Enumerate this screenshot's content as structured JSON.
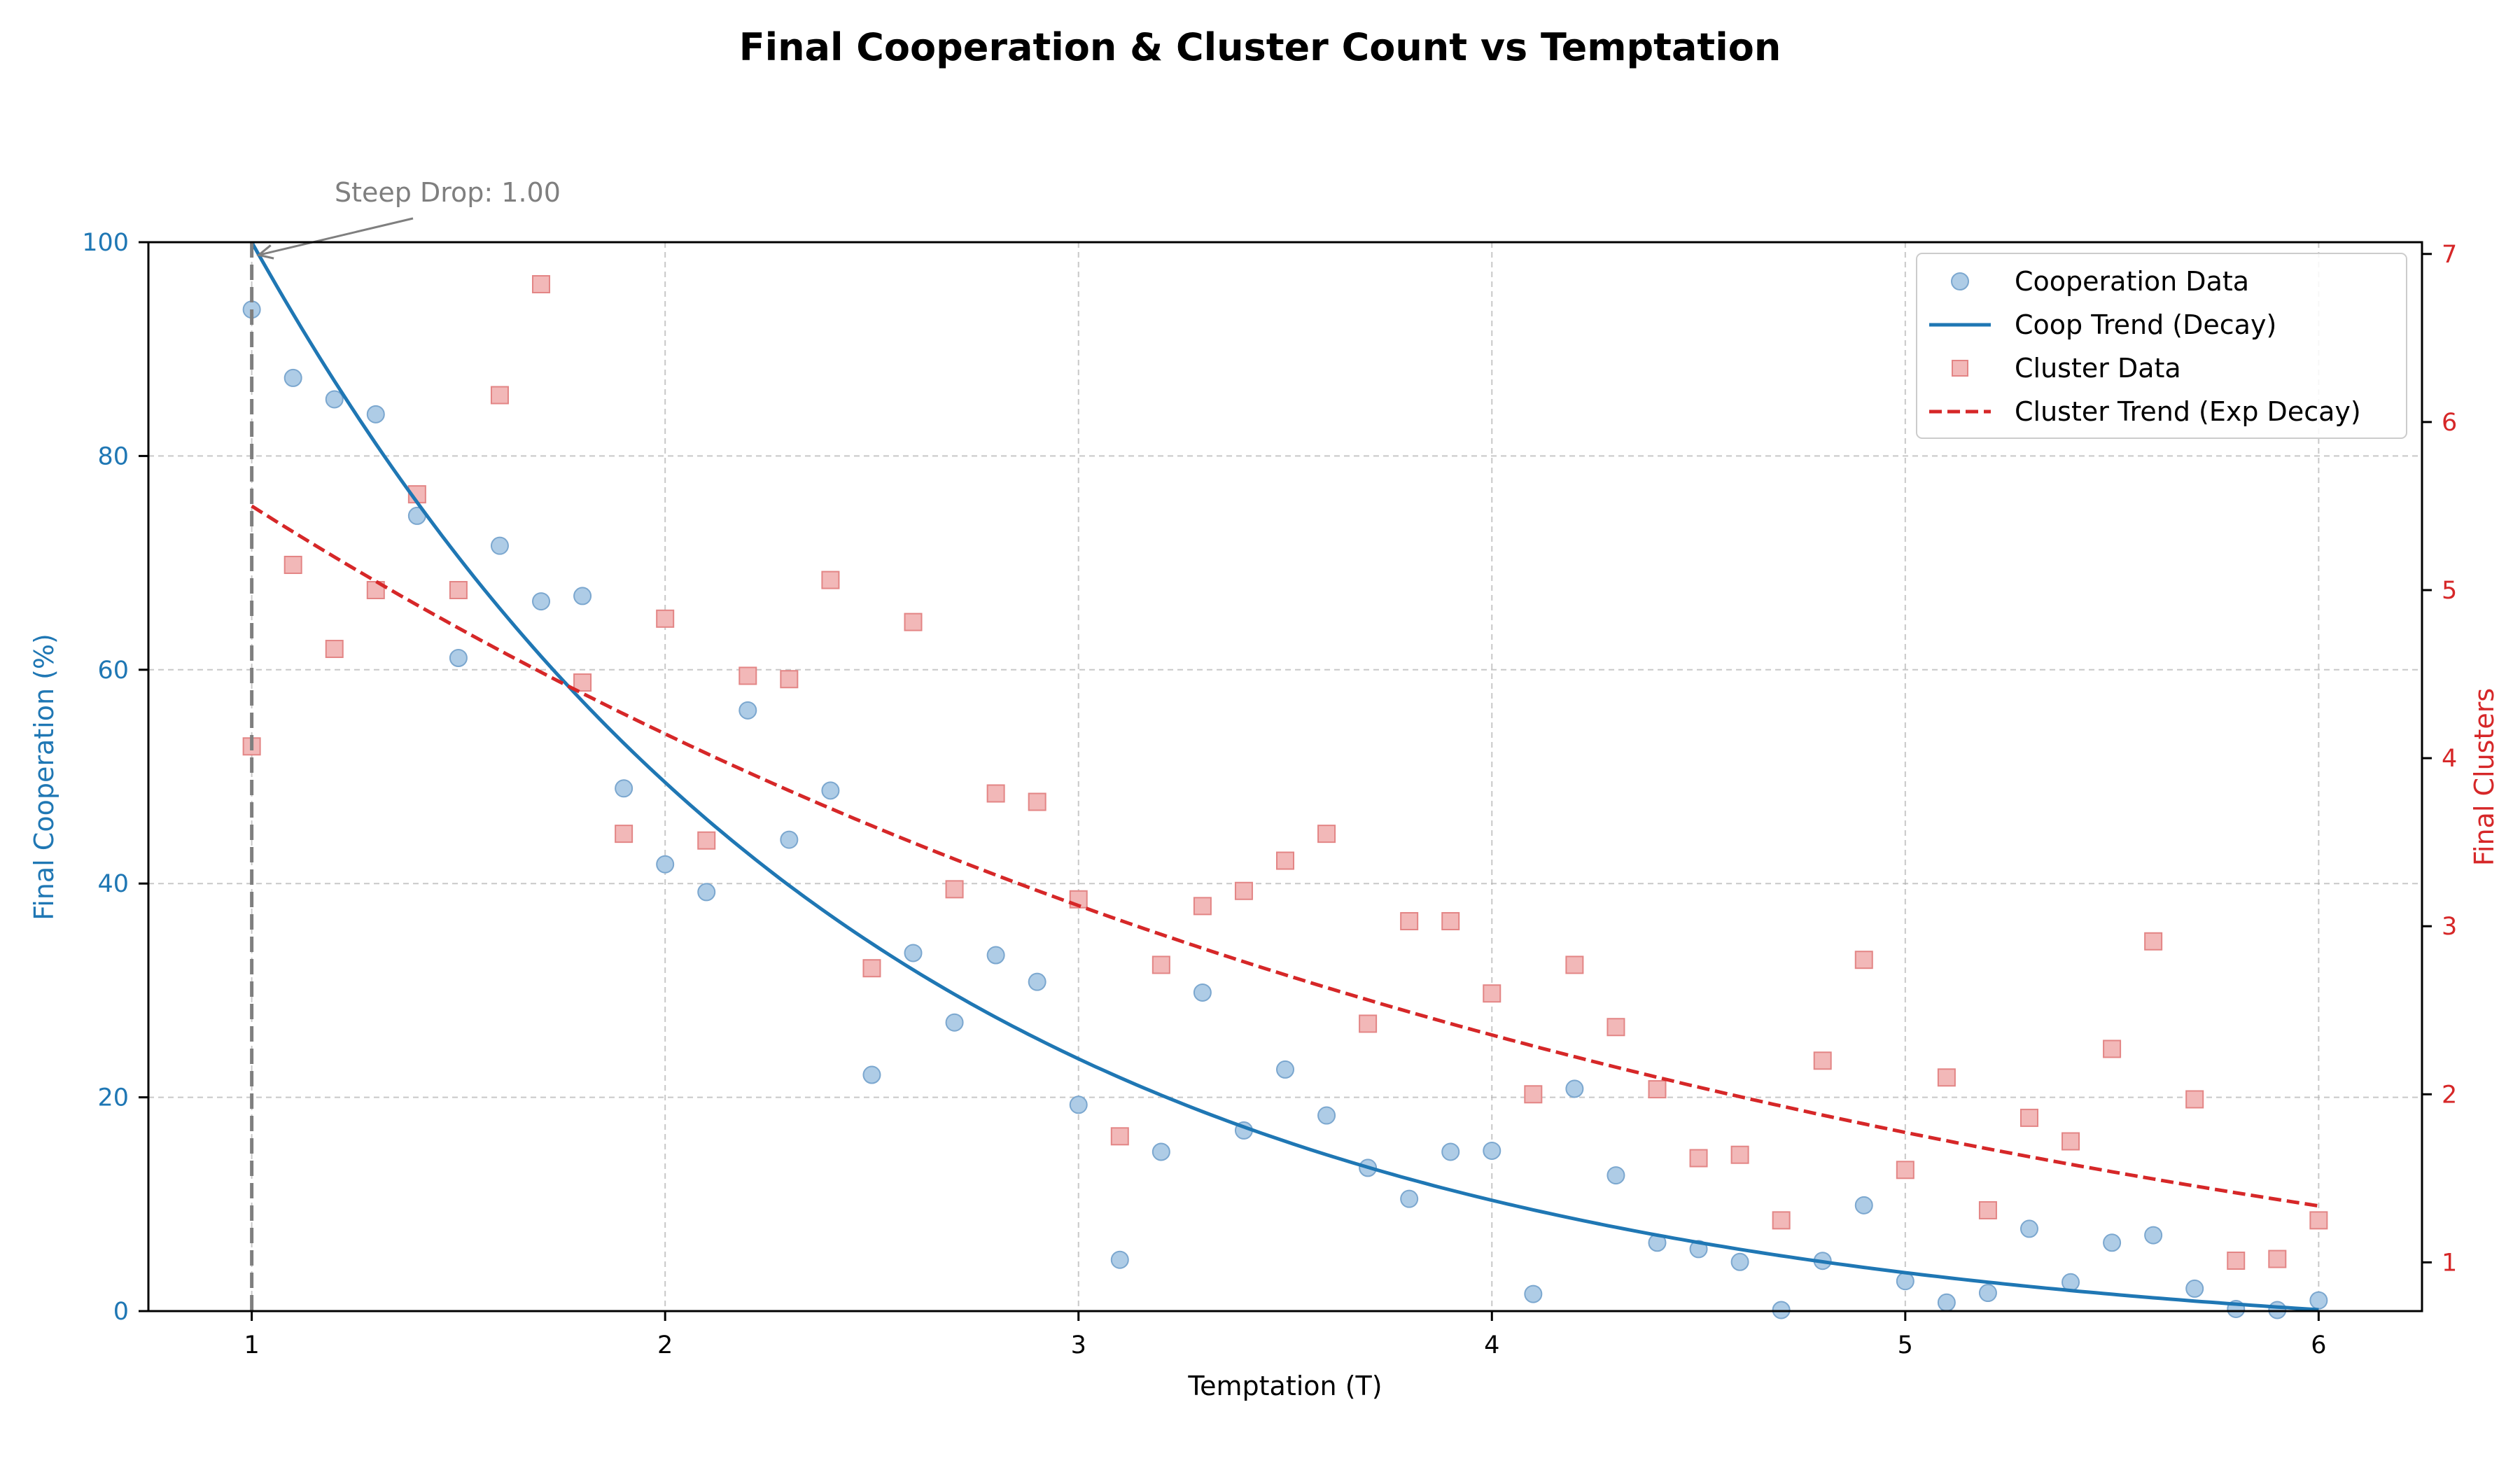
{
  "chart_data": {
    "type": "scatter",
    "title": "Final Cooperation & Cluster Count vs Temptation",
    "xlabel": "Temptation (T)",
    "ylabel_left": "Final Cooperation (%)",
    "ylabel_right": "Final Clusters",
    "xlim": [
      0.75,
      6.25
    ],
    "ylim_left": [
      0,
      100
    ],
    "ylim_right": [
      0.71,
      7.07
    ],
    "xticks": [
      "1",
      "2",
      "3",
      "4",
      "5",
      "6"
    ],
    "yticks_left": [
      "0",
      "20",
      "40",
      "60",
      "80",
      "100"
    ],
    "yticks_right": [
      "1",
      "2",
      "3",
      "4",
      "5",
      "6",
      "7"
    ],
    "grid": true,
    "legend_position": "top-right",
    "legend": [
      "Cooperation Data",
      "Coop Trend (Decay)",
      "Cluster Data",
      "Cluster Trend (Exp Decay)"
    ],
    "colors": {
      "coop": "#1f77b4",
      "coop_marker_fill": "#aecce6",
      "cluster": "#d62728",
      "cluster_marker_fill": "#f2b8b8",
      "annotation": "#7f7f7f"
    },
    "annotation": {
      "text": "Steep Drop: 1.00",
      "x": 1.0
    },
    "x": [
      1.0,
      1.1,
      1.2,
      1.3,
      1.4,
      1.5,
      1.6,
      1.7,
      1.8,
      1.9,
      2.0,
      2.1,
      2.2,
      2.3,
      2.4,
      2.5,
      2.6,
      2.7,
      2.8,
      2.9,
      3.0,
      3.1,
      3.2,
      3.3,
      3.4,
      3.5,
      3.6,
      3.7,
      3.8,
      3.9,
      4.0,
      4.1,
      4.2,
      4.3,
      4.4,
      4.5,
      4.6,
      4.7,
      4.8,
      4.9,
      5.0,
      5.1,
      5.2,
      5.3,
      5.4,
      5.5,
      5.6,
      5.7,
      5.8,
      5.9,
      6.0
    ],
    "cooperation": [
      93.7,
      87.3,
      85.3,
      83.9,
      74.4,
      61.1,
      71.6,
      66.4,
      66.9,
      48.9,
      41.8,
      39.2,
      56.2,
      44.1,
      48.7,
      22.1,
      33.5,
      27.0,
      33.3,
      30.8,
      19.3,
      4.8,
      14.9,
      29.8,
      16.9,
      22.6,
      18.3,
      13.4,
      10.5,
      14.9,
      15.0,
      1.6,
      20.8,
      12.7,
      6.4,
      5.8,
      4.6,
      0.1,
      4.7,
      9.9,
      2.8,
      0.8,
      1.7,
      7.7,
      2.7,
      6.4,
      7.1,
      2.1,
      0.2,
      0.1,
      1.0
    ],
    "clusters": [
      4.07,
      5.15,
      4.65,
      5.0,
      5.57,
      5.0,
      6.16,
      6.82,
      4.45,
      3.55,
      4.83,
      3.51,
      4.49,
      4.47,
      5.06,
      2.75,
      4.81,
      3.22,
      3.79,
      3.74,
      3.16,
      1.75,
      2.77,
      3.12,
      3.21,
      3.39,
      3.55,
      2.42,
      3.03,
      3.03,
      2.6,
      2.0,
      2.77,
      2.4,
      2.03,
      1.62,
      1.64,
      1.25,
      2.2,
      2.8,
      1.55,
      2.1,
      1.31,
      1.86,
      1.72,
      2.27,
      2.91,
      1.97,
      1.01,
      1.02,
      1.25
    ],
    "coop_trend": {
      "a": 100.0,
      "k": 0.67,
      "c": -3.5
    },
    "cluster_trend": {
      "a": 5.5,
      "k": 0.283
    }
  }
}
